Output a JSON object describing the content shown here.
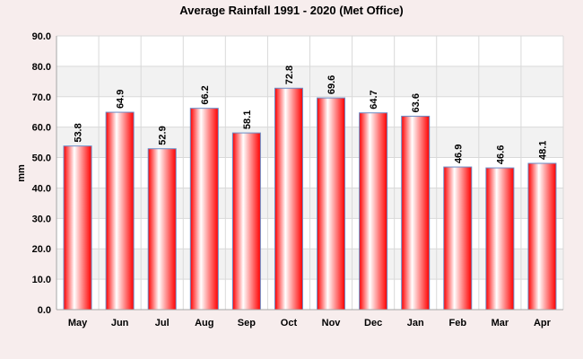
{
  "chart_data": {
    "type": "bar",
    "title": "Average Rainfall 1991 - 2020 (Met Office)",
    "xlabel": "",
    "ylabel": "mm",
    "ylim": [
      0,
      90
    ],
    "ytick_step": 10,
    "ytick_labels": [
      "0.0",
      "10.0",
      "20.0",
      "30.0",
      "40.0",
      "50.0",
      "60.0",
      "70.0",
      "80.0",
      "90.0"
    ],
    "categories": [
      "May",
      "Jun",
      "Jul",
      "Aug",
      "Sep",
      "Oct",
      "Nov",
      "Dec",
      "Jan",
      "Feb",
      "Mar",
      "Apr"
    ],
    "values": [
      53.8,
      64.9,
      52.9,
      66.2,
      58.1,
      72.8,
      69.6,
      64.7,
      63.6,
      46.9,
      46.6,
      48.1
    ],
    "data_labels": [
      "53.8",
      "64.9",
      "52.9",
      "66.2",
      "58.1",
      "72.8",
      "69.6",
      "64.7",
      "63.6",
      "46.9",
      "46.6",
      "48.1"
    ],
    "grid": true,
    "legend": "none",
    "colors": {
      "bar_fill": "#ff0000",
      "bar_highlight": "#ffffff",
      "bar_stroke": "#6a8cc7",
      "band": "#f2f2f2",
      "plot_bg": "#ffffff",
      "gridline": "#d9d9d9"
    }
  }
}
